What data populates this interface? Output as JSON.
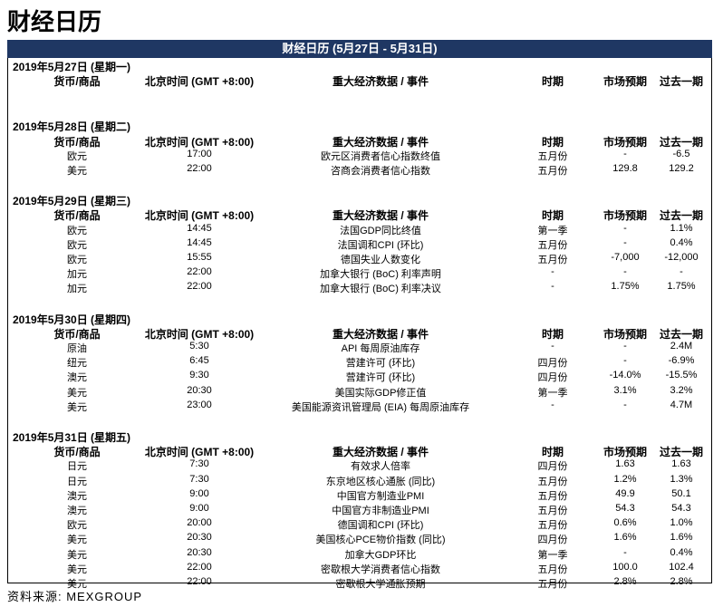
{
  "header": {
    "title": "财经日历"
  },
  "table": {
    "title": "财经日历 (5月27日 - 5月31日)",
    "columns": [
      "货币/商品",
      "北京时间 (GMT +8:00)",
      "重大经济数据 / 事件",
      "时期",
      "市场预期",
      "过去一期"
    ],
    "days": [
      {
        "label": "2019年5月27日 (星期一)",
        "rows": []
      },
      {
        "label": "2019年5月28日 (星期二)",
        "rows": [
          [
            "欧元",
            "17:00",
            "欧元区消费者信心指数终值",
            "五月份",
            "-",
            "-6.5"
          ],
          [
            "美元",
            "22:00",
            "咨商会消费者信心指数",
            "五月份",
            "129.8",
            "129.2"
          ]
        ]
      },
      {
        "label": "2019年5月29日 (星期三)",
        "rows": [
          [
            "欧元",
            "14:45",
            "法国GDP同比终值",
            "第一季",
            "-",
            "1.1%"
          ],
          [
            "欧元",
            "14:45",
            "法国调和CPI (环比)",
            "五月份",
            "-",
            "0.4%"
          ],
          [
            "欧元",
            "15:55",
            "德国失业人数变化",
            "五月份",
            "-7,000",
            "-12,000"
          ],
          [
            "加元",
            "22:00",
            "加拿大银行 (BoC) 利率声明",
            "-",
            "-",
            "-"
          ],
          [
            "加元",
            "22:00",
            "加拿大银行 (BoC) 利率决议",
            "-",
            "1.75%",
            "1.75%"
          ]
        ]
      },
      {
        "label": "2019年5月30日 (星期四)",
        "rows": [
          [
            "原油",
            "5:30",
            "API 每周原油库存",
            "-",
            "-",
            "2.4M"
          ],
          [
            "纽元",
            "6:45",
            "营建许可 (环比)",
            "四月份",
            "-",
            "-6.9%"
          ],
          [
            "澳元",
            "9:30",
            "营建许可 (环比)",
            "四月份",
            "-14.0%",
            "-15.5%"
          ],
          [
            "美元",
            "20:30",
            "美国实际GDP修正值",
            "第一季",
            "3.1%",
            "3.2%"
          ],
          [
            "美元",
            "23:00",
            "美国能源资讯管理局 (EIA) 每周原油库存",
            "-",
            "-",
            "4.7M"
          ]
        ]
      },
      {
        "label": "2019年5月31日 (星期五)",
        "rows": [
          [
            "日元",
            "7:30",
            "有效求人倍率",
            "四月份",
            "1.63",
            "1.63"
          ],
          [
            "日元",
            "7:30",
            "东京地区核心通胀 (同比)",
            "五月份",
            "1.2%",
            "1.3%"
          ],
          [
            "澳元",
            "9:00",
            "中国官方制造业PMI",
            "五月份",
            "49.9",
            "50.1"
          ],
          [
            "澳元",
            "9:00",
            "中国官方非制造业PMI",
            "五月份",
            "54.3",
            "54.3"
          ],
          [
            "欧元",
            "20:00",
            "德国调和CPI (环比)",
            "五月份",
            "0.6%",
            "1.0%"
          ],
          [
            "美元",
            "20:30",
            "美国核心PCE物价指数 (同比)",
            "四月份",
            "1.6%",
            "1.6%"
          ],
          [
            "美元",
            "20:30",
            "加拿大GDP环比",
            "第一季",
            "-",
            "0.4%"
          ],
          [
            "美元",
            "22:00",
            "密歇根大学消费者信心指数",
            "五月份",
            "100.0",
            "102.4"
          ],
          [
            "美元",
            "22:00",
            "密歇根大学通胀预期",
            "五月份",
            "2.8%",
            "2.8%"
          ]
        ]
      }
    ]
  },
  "footer": {
    "source": "资料来源: MEXGROUP"
  }
}
